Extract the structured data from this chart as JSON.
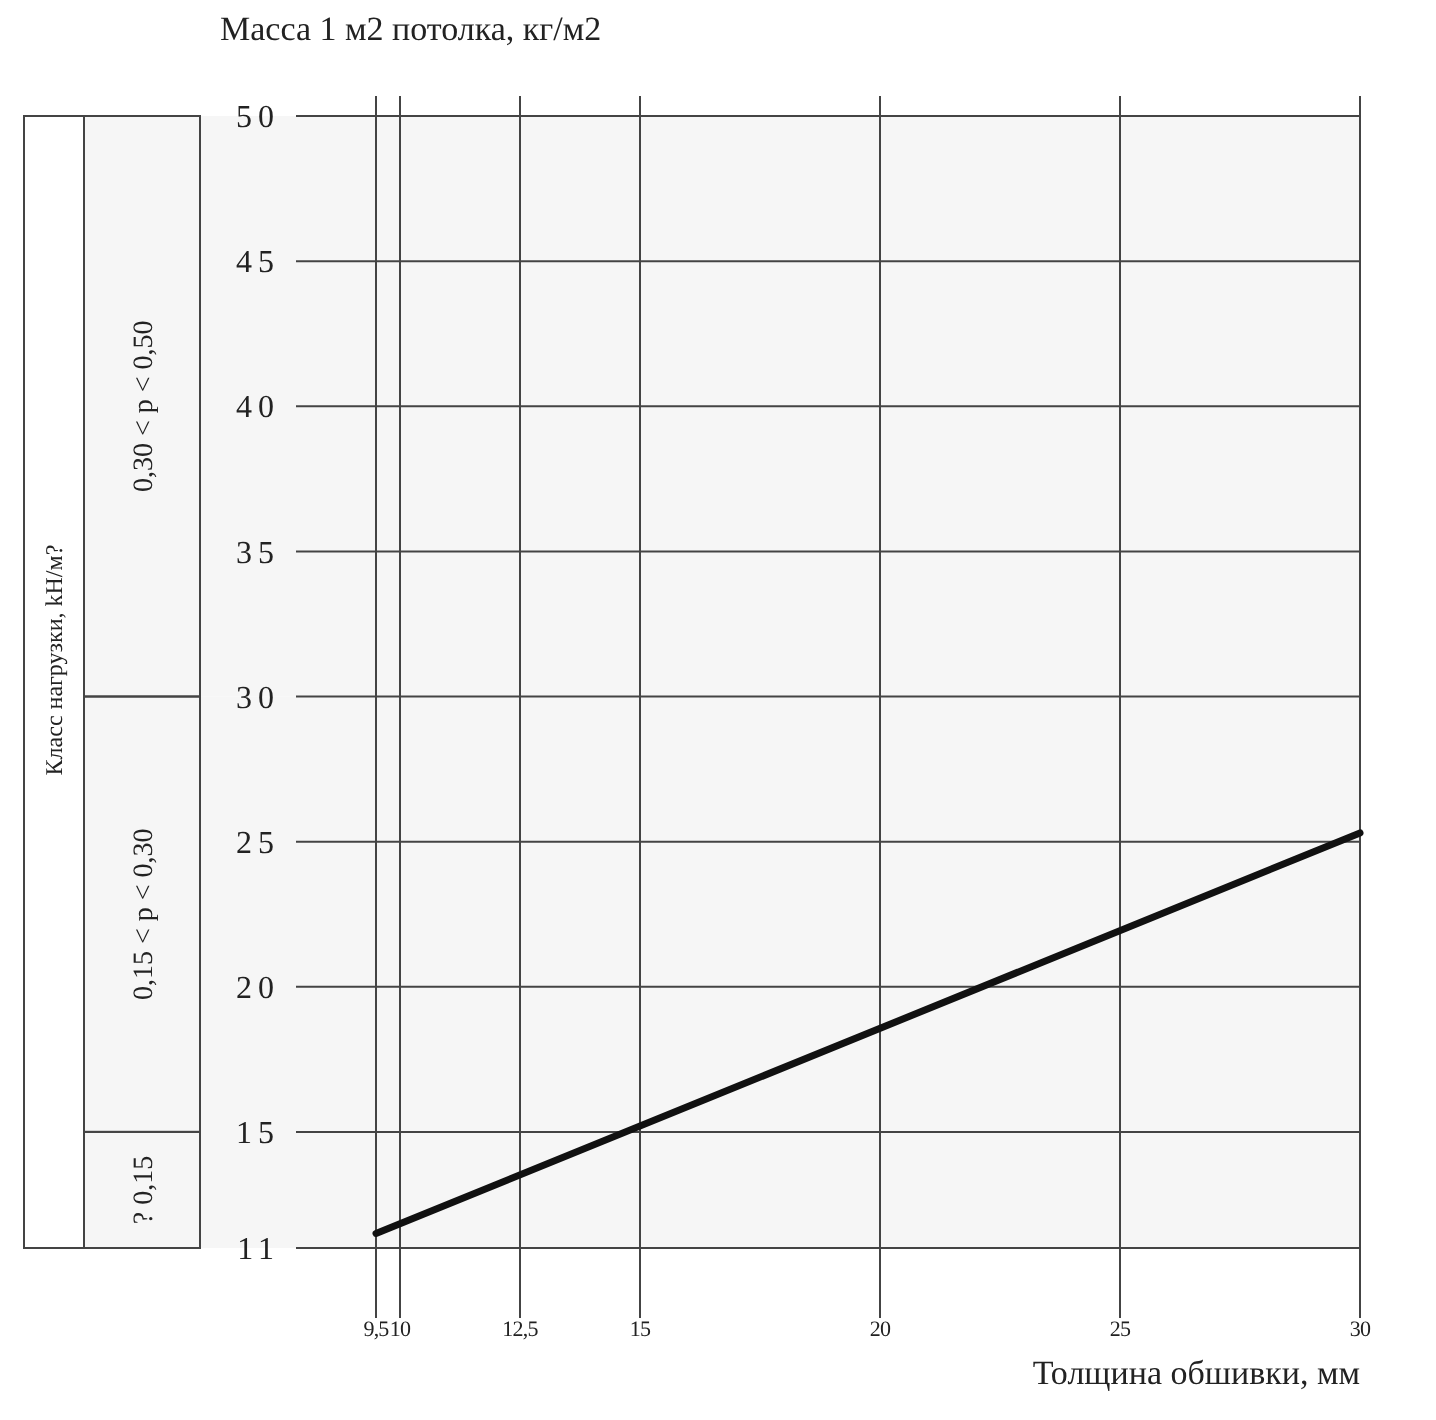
{
  "chart_data": {
    "type": "line",
    "ylabel": "Масса 1 м2 потолка, кг/м2",
    "xlabel": "Толщина обшивки, мм",
    "x": [
      9.5,
      30
    ],
    "series": [
      {
        "color": "#111111",
        "values": [
          11.5,
          25.3
        ]
      }
    ],
    "xlim": [
      9.5,
      30
    ],
    "xticks": [
      {
        "value": 9.5,
        "label": "9,5"
      },
      10,
      {
        "value": 12.5,
        "label": "12,5"
      },
      15,
      20,
      25,
      30
    ],
    "ylim": [
      11,
      50
    ],
    "yticks": [
      11,
      15,
      20,
      25,
      30,
      35,
      40,
      45,
      50
    ],
    "grid": true,
    "marker": "none",
    "line_style": "solid",
    "bands": [
      {
        "axis": "y",
        "from": 11,
        "to": 15,
        "label": "? 0,15",
        "color": "#f6f6f6"
      },
      {
        "axis": "y",
        "from": 15,
        "to": 30,
        "label": "0,15 < p < 0,30",
        "color": "#f6f6f6"
      },
      {
        "axis": "y",
        "from": 30,
        "to": 50,
        "label": "0,30 < p < 0,50",
        "color": "#f6f6f6"
      }
    ],
    "annotations": [
      "Класс нагрузки, kH/м?"
    ]
  }
}
